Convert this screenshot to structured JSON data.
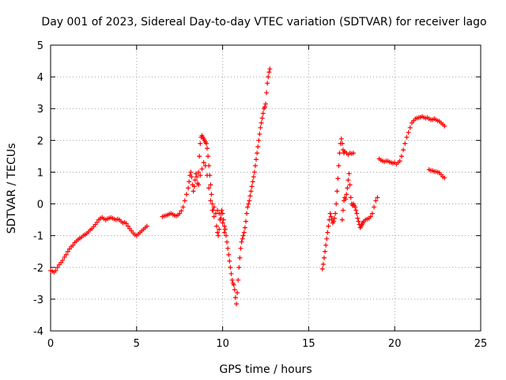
{
  "chart_data": {
    "type": "scatter",
    "title": "Day 001 of 2023, Sidereal Day-to-day VTEC variation (SDTVAR) for receiver lago",
    "xlabel": "GPS time / hours",
    "ylabel": "SDTVAR / TECUs",
    "xlim": [
      0,
      25
    ],
    "ylim": [
      -4,
      5
    ],
    "xticks": [
      0,
      5,
      10,
      15,
      20,
      25
    ],
    "yticks": [
      -4,
      -3,
      -2,
      -1,
      0,
      1,
      2,
      3,
      4,
      5
    ],
    "grid": true,
    "marker": "+",
    "color": "#ff0000",
    "series": [
      {
        "points": [
          [
            0.0,
            -2.1
          ],
          [
            0.1,
            -2.12
          ],
          [
            0.2,
            -2.15
          ],
          [
            0.3,
            -2.1
          ],
          [
            0.4,
            -2.0
          ],
          [
            0.5,
            -1.92
          ],
          [
            0.6,
            -1.85
          ],
          [
            0.7,
            -1.78
          ],
          [
            0.8,
            -1.68
          ],
          [
            0.9,
            -1.6
          ],
          [
            1.0,
            -1.5
          ],
          [
            1.1,
            -1.42
          ],
          [
            1.2,
            -1.35
          ],
          [
            1.3,
            -1.3
          ],
          [
            1.4,
            -1.22
          ],
          [
            1.5,
            -1.17
          ],
          [
            1.6,
            -1.12
          ],
          [
            1.7,
            -1.08
          ],
          [
            1.8,
            -1.05
          ],
          [
            1.9,
            -1.0
          ],
          [
            2.0,
            -0.97
          ],
          [
            2.1,
            -0.93
          ],
          [
            2.2,
            -0.88
          ],
          [
            2.3,
            -0.82
          ],
          [
            2.4,
            -0.78
          ],
          [
            2.5,
            -0.72
          ],
          [
            2.6,
            -0.65
          ],
          [
            2.7,
            -0.58
          ],
          [
            2.8,
            -0.5
          ],
          [
            2.9,
            -0.45
          ],
          [
            3.0,
            -0.43
          ],
          [
            3.1,
            -0.47
          ],
          [
            3.2,
            -0.5
          ],
          [
            3.3,
            -0.47
          ],
          [
            3.4,
            -0.45
          ],
          [
            3.5,
            -0.43
          ],
          [
            3.6,
            -0.45
          ],
          [
            3.7,
            -0.48
          ],
          [
            3.8,
            -0.5
          ],
          [
            3.9,
            -0.48
          ],
          [
            4.0,
            -0.5
          ],
          [
            4.1,
            -0.55
          ],
          [
            4.2,
            -0.6
          ],
          [
            4.3,
            -0.58
          ],
          [
            4.4,
            -0.62
          ],
          [
            4.5,
            -0.7
          ],
          [
            4.6,
            -0.78
          ],
          [
            4.7,
            -0.85
          ],
          [
            4.8,
            -0.92
          ],
          [
            4.9,
            -0.97
          ],
          [
            5.0,
            -1.0
          ],
          [
            5.1,
            -0.95
          ],
          [
            5.2,
            -0.9
          ],
          [
            5.3,
            -0.85
          ],
          [
            5.4,
            -0.8
          ],
          [
            5.5,
            -0.75
          ],
          [
            5.6,
            -0.7
          ]
        ]
      },
      {
        "points": [
          [
            6.5,
            -0.4
          ],
          [
            6.6,
            -0.38
          ],
          [
            6.7,
            -0.37
          ],
          [
            6.8,
            -0.35
          ],
          [
            6.9,
            -0.32
          ],
          [
            7.0,
            -0.3
          ],
          [
            7.1,
            -0.33
          ],
          [
            7.2,
            -0.36
          ],
          [
            7.3,
            -0.38
          ],
          [
            7.4,
            -0.35
          ],
          [
            7.5,
            -0.3
          ],
          [
            7.6,
            -0.22
          ],
          [
            7.7,
            -0.1
          ],
          [
            7.8,
            0.1
          ],
          [
            7.9,
            0.3
          ],
          [
            8.0,
            0.5
          ],
          [
            8.05,
            0.7
          ],
          [
            8.1,
            0.9
          ],
          [
            8.15,
            1.0
          ],
          [
            8.2,
            0.85
          ],
          [
            8.25,
            0.6
          ],
          [
            8.3,
            0.4
          ],
          [
            8.35,
            0.55
          ],
          [
            8.4,
            0.75
          ],
          [
            8.45,
            0.95
          ],
          [
            8.5,
            0.85
          ],
          [
            8.55,
            0.65
          ],
          [
            8.6,
            1.0
          ],
          [
            8.65,
            1.5
          ],
          [
            8.7,
            1.9
          ],
          [
            8.75,
            2.1
          ],
          [
            8.8,
            2.15
          ],
          [
            8.85,
            2.1
          ],
          [
            8.9,
            2.05
          ],
          [
            8.95,
            2.0
          ],
          [
            9.0,
            1.95
          ],
          [
            9.05,
            1.9
          ],
          [
            9.1,
            1.75
          ],
          [
            9.15,
            1.5
          ],
          [
            9.2,
            1.2
          ],
          [
            9.25,
            0.9
          ],
          [
            9.3,
            0.6
          ],
          [
            9.35,
            0.3
          ],
          [
            9.4,
            0.0
          ],
          [
            9.45,
            -0.2
          ],
          [
            9.5,
            -0.4
          ],
          [
            8.6,
            0.6
          ],
          [
            8.7,
            0.9
          ],
          [
            8.8,
            1.1
          ],
          [
            8.9,
            1.3
          ],
          [
            9.0,
            1.2
          ],
          [
            9.1,
            0.9
          ],
          [
            9.2,
            0.5
          ],
          [
            9.3,
            0.1
          ],
          [
            9.4,
            -0.2
          ],
          [
            9.5,
            -0.1
          ],
          [
            9.6,
            -0.3
          ],
          [
            9.65,
            -0.7
          ],
          [
            9.7,
            -0.9
          ],
          [
            9.75,
            -1.0
          ],
          [
            9.8,
            -0.8
          ],
          [
            9.85,
            -0.5
          ],
          [
            9.9,
            -0.3
          ],
          [
            9.95,
            -0.2
          ],
          [
            10.0,
            -0.3
          ],
          [
            10.05,
            -0.5
          ],
          [
            10.1,
            -0.7
          ],
          [
            10.15,
            -0.8
          ],
          [
            9.7,
            -0.2
          ],
          [
            9.8,
            -0.3
          ],
          [
            9.9,
            -0.45
          ],
          [
            10.0,
            -0.6
          ],
          [
            10.1,
            -0.9
          ],
          [
            10.2,
            -1.0
          ],
          [
            10.25,
            -1.2
          ],
          [
            10.3,
            -1.4
          ],
          [
            10.35,
            -1.6
          ],
          [
            10.4,
            -1.8
          ],
          [
            10.45,
            -2.0
          ],
          [
            10.5,
            -2.2
          ],
          [
            10.55,
            -2.4
          ],
          [
            10.6,
            -2.5
          ],
          [
            10.65,
            -2.55
          ],
          [
            10.7,
            -2.7
          ],
          [
            10.75,
            -2.95
          ],
          [
            10.8,
            -3.15
          ],
          [
            10.85,
            -2.8
          ],
          [
            10.9,
            -2.4
          ],
          [
            10.95,
            -2.0
          ],
          [
            11.0,
            -1.7
          ],
          [
            11.05,
            -1.4
          ],
          [
            11.1,
            -1.2
          ],
          [
            11.15,
            -1.1
          ],
          [
            11.2,
            -1.0
          ],
          [
            11.25,
            -0.9
          ],
          [
            11.3,
            -0.75
          ],
          [
            11.35,
            -0.55
          ],
          [
            11.4,
            -0.3
          ],
          [
            11.45,
            -0.1
          ],
          [
            11.5,
            0.0
          ],
          [
            11.55,
            0.1
          ],
          [
            11.6,
            0.25
          ],
          [
            11.65,
            0.4
          ],
          [
            11.7,
            0.55
          ],
          [
            11.75,
            0.7
          ],
          [
            11.8,
            0.85
          ],
          [
            11.85,
            1.0
          ],
          [
            11.9,
            1.2
          ],
          [
            11.95,
            1.4
          ],
          [
            12.0,
            1.6
          ],
          [
            12.05,
            1.8
          ],
          [
            12.1,
            2.0
          ],
          [
            12.15,
            2.2
          ],
          [
            12.2,
            2.4
          ],
          [
            12.25,
            2.55
          ],
          [
            12.3,
            2.7
          ],
          [
            12.35,
            2.85
          ],
          [
            12.4,
            3.0
          ],
          [
            12.45,
            3.05
          ],
          [
            12.5,
            3.15
          ],
          [
            12.55,
            3.5
          ],
          [
            12.6,
            3.8
          ],
          [
            12.65,
            4.0
          ],
          [
            12.7,
            4.15
          ],
          [
            12.75,
            4.25
          ]
        ]
      },
      {
        "points": [
          [
            15.8,
            -2.05
          ],
          [
            15.85,
            -1.9
          ],
          [
            15.9,
            -1.7
          ],
          [
            15.95,
            -1.5
          ],
          [
            16.0,
            -1.3
          ],
          [
            16.05,
            -1.1
          ],
          [
            16.1,
            -0.9
          ],
          [
            16.15,
            -0.7
          ],
          [
            16.2,
            -0.5
          ],
          [
            16.25,
            -0.3
          ],
          [
            16.3,
            -0.4
          ],
          [
            16.35,
            -0.5
          ],
          [
            16.4,
            -0.6
          ],
          [
            16.45,
            -0.55
          ],
          [
            16.5,
            -0.45
          ],
          [
            16.55,
            -0.3
          ],
          [
            16.6,
            0.0
          ],
          [
            16.65,
            0.4
          ],
          [
            16.7,
            0.8
          ],
          [
            16.75,
            1.2
          ],
          [
            16.8,
            1.6
          ],
          [
            16.85,
            1.9
          ],
          [
            16.9,
            2.05
          ],
          [
            16.95,
            1.9
          ],
          [
            17.0,
            1.7
          ],
          [
            17.05,
            1.6
          ],
          [
            17.1,
            1.65
          ],
          [
            17.2,
            1.6
          ],
          [
            17.3,
            1.55
          ],
          [
            17.4,
            1.6
          ],
          [
            17.5,
            1.58
          ],
          [
            17.6,
            1.6
          ],
          [
            16.95,
            -0.5
          ],
          [
            17.0,
            -0.2
          ],
          [
            17.05,
            0.1
          ],
          [
            17.1,
            0.2
          ],
          [
            17.15,
            0.15
          ],
          [
            17.2,
            0.3
          ],
          [
            17.25,
            0.5
          ],
          [
            17.3,
            0.75
          ],
          [
            17.35,
            0.95
          ],
          [
            17.4,
            0.6
          ],
          [
            17.45,
            0.2
          ],
          [
            17.5,
            0.0
          ],
          [
            17.55,
            -0.05
          ],
          [
            17.6,
            0.0
          ],
          [
            17.65,
            -0.05
          ],
          [
            17.7,
            -0.1
          ],
          [
            17.75,
            -0.2
          ],
          [
            17.8,
            -0.3
          ],
          [
            17.85,
            -0.45
          ],
          [
            17.9,
            -0.55
          ],
          [
            17.95,
            -0.65
          ],
          [
            18.0,
            -0.75
          ],
          [
            18.05,
            -0.7
          ],
          [
            18.1,
            -0.65
          ],
          [
            18.15,
            -0.6
          ],
          [
            18.2,
            -0.55
          ],
          [
            18.3,
            -0.5
          ],
          [
            18.4,
            -0.48
          ],
          [
            18.5,
            -0.45
          ],
          [
            18.6,
            -0.4
          ],
          [
            18.7,
            -0.3
          ],
          [
            18.8,
            -0.1
          ],
          [
            18.9,
            0.1
          ],
          [
            19.0,
            0.2
          ]
        ]
      },
      {
        "points": [
          [
            19.1,
            1.42
          ],
          [
            19.2,
            1.38
          ],
          [
            19.3,
            1.35
          ],
          [
            19.4,
            1.33
          ],
          [
            19.5,
            1.35
          ],
          [
            19.6,
            1.35
          ],
          [
            19.7,
            1.32
          ],
          [
            19.8,
            1.3
          ],
          [
            19.9,
            1.28
          ],
          [
            20.0,
            1.3
          ],
          [
            20.1,
            1.25
          ],
          [
            20.2,
            1.3
          ],
          [
            20.3,
            1.35
          ],
          [
            20.4,
            1.5
          ],
          [
            20.5,
            1.7
          ],
          [
            20.6,
            1.9
          ],
          [
            20.7,
            2.1
          ],
          [
            20.8,
            2.25
          ],
          [
            20.9,
            2.4
          ],
          [
            21.0,
            2.55
          ],
          [
            21.1,
            2.62
          ],
          [
            21.2,
            2.68
          ],
          [
            21.3,
            2.7
          ],
          [
            21.4,
            2.72
          ],
          [
            21.5,
            2.73
          ],
          [
            21.6,
            2.75
          ],
          [
            21.7,
            2.72
          ],
          [
            21.8,
            2.7
          ],
          [
            21.9,
            2.72
          ],
          [
            22.0,
            2.68
          ],
          [
            22.1,
            2.65
          ],
          [
            22.2,
            2.65
          ],
          [
            22.3,
            2.68
          ],
          [
            22.4,
            2.65
          ],
          [
            22.5,
            2.62
          ],
          [
            22.6,
            2.6
          ],
          [
            22.7,
            2.55
          ],
          [
            22.8,
            2.5
          ],
          [
            22.9,
            2.45
          ]
        ]
      },
      {
        "points": [
          [
            22.0,
            1.08
          ],
          [
            22.1,
            1.05
          ],
          [
            22.2,
            1.05
          ],
          [
            22.3,
            1.02
          ],
          [
            22.4,
            1.02
          ],
          [
            22.5,
            1.0
          ],
          [
            22.6,
            0.98
          ],
          [
            22.7,
            0.92
          ],
          [
            22.8,
            0.85
          ],
          [
            22.9,
            0.82
          ]
        ]
      }
    ]
  }
}
